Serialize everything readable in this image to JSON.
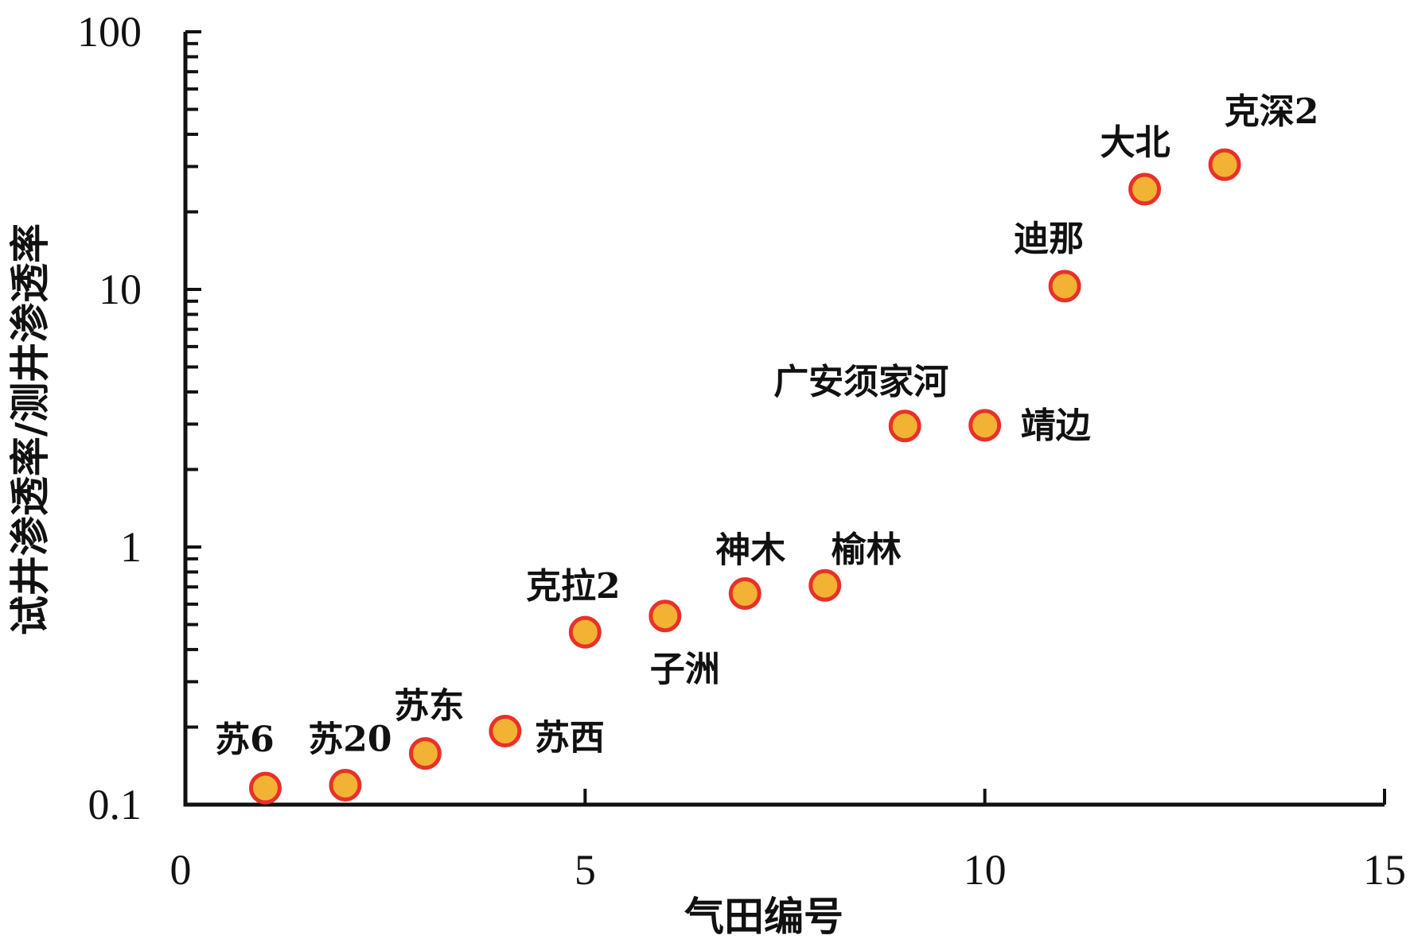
{
  "chart_data": {
    "type": "scatter",
    "title": "",
    "xlabel": "气田编号",
    "ylabel": "试井渗透率/测井渗透率",
    "xlim": [
      0,
      15
    ],
    "ylim": [
      0.1,
      100
    ],
    "yscale": "log",
    "grid": false,
    "xticks": [
      "0",
      "5",
      "10",
      "15"
    ],
    "yticks": [
      "0.1",
      "1",
      "10",
      "100"
    ],
    "marker_fill": "#f2b233",
    "marker_edge": "#e8312a",
    "points": [
      {
        "x": 1,
        "y": 0.116,
        "label": "苏6"
      },
      {
        "x": 2,
        "y": 0.119,
        "label": "苏20"
      },
      {
        "x": 3,
        "y": 0.158,
        "label": "苏东"
      },
      {
        "x": 4,
        "y": 0.193,
        "label": "苏西"
      },
      {
        "x": 5,
        "y": 0.467,
        "label": "克拉2"
      },
      {
        "x": 6,
        "y": 0.54,
        "label": "子洲"
      },
      {
        "x": 7,
        "y": 0.66,
        "label": "神木"
      },
      {
        "x": 8,
        "y": 0.71,
        "label": "榆林"
      },
      {
        "x": 9,
        "y": 2.95,
        "label": "广安须家河"
      },
      {
        "x": 10,
        "y": 2.97,
        "label": "靖边"
      },
      {
        "x": 11,
        "y": 10.3,
        "label": "迪那"
      },
      {
        "x": 12,
        "y": 24.5,
        "label": "大北"
      },
      {
        "x": 13,
        "y": 30.5,
        "label": "克深2"
      }
    ]
  }
}
